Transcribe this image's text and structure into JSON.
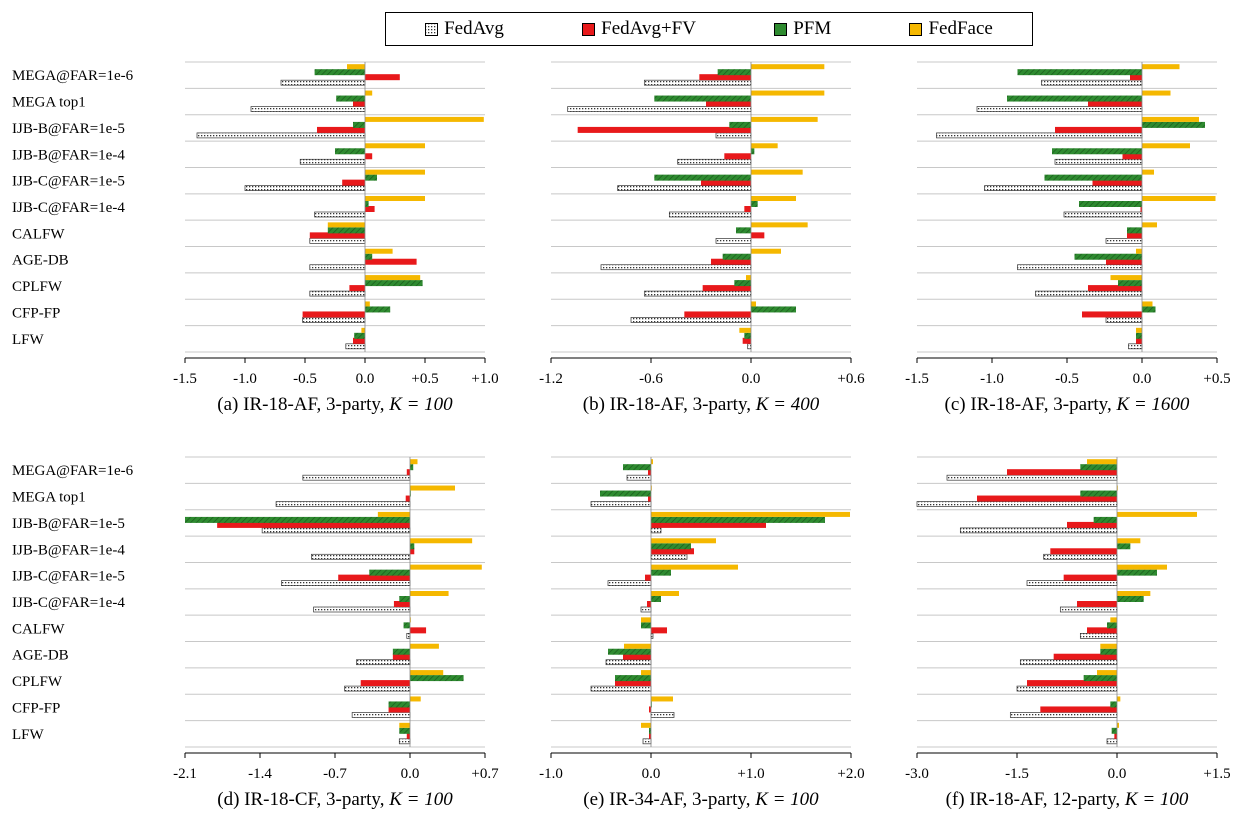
{
  "legend": {
    "entries": [
      {
        "name": "FedAvg",
        "color": "#ffffff",
        "pattern": "dotted"
      },
      {
        "name": "FedAvg+FV",
        "color": "#e8191b"
      },
      {
        "name": "PFM",
        "color": "#2e8b30",
        "pattern": "hatched"
      },
      {
        "name": "FedFace",
        "color": "#f5b800"
      }
    ]
  },
  "chart_data": [
    {
      "type": "bar",
      "orientation": "horizontal",
      "caption_prefix": "(a) IR-18-AF, 3-party, ",
      "caption_k": "K = 100",
      "categories": [
        "MEGA@FAR=1e-6",
        "MEGA top1",
        "IJB-B@FAR=1e-5",
        "IJB-B@FAR=1e-4",
        "IJB-C@FAR=1e-5",
        "IJB-C@FAR=1e-4",
        "CALFW",
        "AGE-DB",
        "CPLFW",
        "CFP-FP",
        "LFW"
      ],
      "xlim": [
        -1.5,
        1.0
      ],
      "xticks": [
        -1.5,
        -1.0,
        -0.5,
        0.0,
        0.5,
        1.0
      ],
      "xtick_labels": [
        "-1.5",
        "-1.0",
        "-0.5",
        "0.0",
        "+0.5",
        "+1.0"
      ],
      "series": [
        {
          "name": "FedAvg",
          "values": [
            -0.7,
            -0.95,
            -1.4,
            -0.54,
            -1.0,
            -0.42,
            -0.46,
            -0.46,
            -0.46,
            -0.52,
            -0.16
          ]
        },
        {
          "name": "FedAvg+FV",
          "values": [
            0.29,
            -0.1,
            -0.4,
            0.06,
            -0.19,
            0.08,
            -0.46,
            0.43,
            -0.13,
            -0.52,
            -0.1
          ]
        },
        {
          "name": "PFM",
          "values": [
            -0.42,
            -0.24,
            -0.1,
            -0.25,
            0.1,
            0.03,
            -0.31,
            0.06,
            0.48,
            0.21,
            -0.09
          ]
        },
        {
          "name": "FedFace",
          "values": [
            -0.15,
            0.06,
            0.99,
            0.5,
            0.5,
            0.5,
            -0.31,
            0.23,
            0.46,
            0.04,
            -0.03
          ]
        }
      ]
    },
    {
      "type": "bar",
      "orientation": "horizontal",
      "caption_prefix": "(b) IR-18-AF, 3-party, ",
      "caption_k": "K = 400",
      "categories": [
        "MEGA@FAR=1e-6",
        "MEGA top1",
        "IJB-B@FAR=1e-5",
        "IJB-B@FAR=1e-4",
        "IJB-C@FAR=1e-5",
        "IJB-C@FAR=1e-4",
        "CALFW",
        "AGE-DB",
        "CPLFW",
        "CFP-FP",
        "LFW"
      ],
      "xlim": [
        -1.2,
        0.6
      ],
      "xticks": [
        -1.2,
        -0.6,
        0.0,
        0.6
      ],
      "xtick_labels": [
        "-1.2",
        "-0.6",
        "0.0",
        "+0.6"
      ],
      "series": [
        {
          "name": "FedAvg",
          "values": [
            -0.64,
            -1.1,
            -0.21,
            -0.44,
            -0.8,
            -0.49,
            -0.21,
            -0.9,
            -0.64,
            -0.72,
            -0.02
          ]
        },
        {
          "name": "FedAvg+FV",
          "values": [
            -0.31,
            -0.27,
            -1.04,
            -0.16,
            -0.3,
            -0.04,
            0.08,
            -0.24,
            -0.29,
            -0.4,
            -0.05
          ]
        },
        {
          "name": "PFM",
          "values": [
            -0.2,
            -0.58,
            -0.13,
            0.02,
            -0.58,
            0.04,
            -0.09,
            -0.17,
            -0.1,
            0.27,
            -0.04
          ]
        },
        {
          "name": "FedFace",
          "values": [
            0.44,
            0.44,
            0.4,
            0.16,
            0.31,
            0.27,
            0.34,
            0.18,
            -0.03,
            0.03,
            -0.07
          ]
        }
      ]
    },
    {
      "type": "bar",
      "orientation": "horizontal",
      "caption_prefix": "(c) IR-18-AF, 3-party, ",
      "caption_k": "K = 1600",
      "categories": [
        "MEGA@FAR=1e-6",
        "MEGA top1",
        "IJB-B@FAR=1e-5",
        "IJB-B@FAR=1e-4",
        "IJB-C@FAR=1e-5",
        "IJB-C@FAR=1e-4",
        "CALFW",
        "AGE-DB",
        "CPLFW",
        "CFP-FP",
        "LFW"
      ],
      "xlim": [
        -1.5,
        0.5
      ],
      "xticks": [
        -1.5,
        -1.0,
        -0.5,
        0.0,
        0.5
      ],
      "xtick_labels": [
        "-1.5",
        "-1.0",
        "-0.5",
        "0.0",
        "+0.5"
      ],
      "series": [
        {
          "name": "FedAvg",
          "values": [
            -0.67,
            -1.1,
            -1.37,
            -0.58,
            -1.05,
            -0.52,
            -0.24,
            -0.83,
            -0.71,
            -0.24,
            -0.09
          ]
        },
        {
          "name": "FedAvg+FV",
          "values": [
            -0.08,
            -0.36,
            -0.58,
            -0.13,
            -0.33,
            -0.01,
            -0.1,
            -0.24,
            -0.36,
            -0.4,
            -0.04
          ]
        },
        {
          "name": "PFM",
          "values": [
            -0.83,
            -0.9,
            0.42,
            -0.6,
            -0.65,
            -0.42,
            -0.1,
            -0.45,
            -0.16,
            0.09,
            -0.04
          ]
        },
        {
          "name": "FedFace",
          "values": [
            0.25,
            0.19,
            0.38,
            0.32,
            0.08,
            0.49,
            0.1,
            -0.04,
            -0.21,
            0.07,
            -0.04
          ]
        }
      ]
    },
    {
      "type": "bar",
      "orientation": "horizontal",
      "caption_prefix": "(d) IR-18-CF, 3-party, ",
      "caption_k": "K = 100",
      "categories": [
        "MEGA@FAR=1e-6",
        "MEGA top1",
        "IJB-B@FAR=1e-5",
        "IJB-B@FAR=1e-4",
        "IJB-C@FAR=1e-5",
        "IJB-C@FAR=1e-4",
        "CALFW",
        "AGE-DB",
        "CPLFW",
        "CFP-FP",
        "LFW"
      ],
      "xlim": [
        -2.1,
        0.7
      ],
      "xticks": [
        -2.1,
        -1.4,
        -0.7,
        0.0,
        0.7
      ],
      "xtick_labels": [
        "-2.1",
        "-1.4",
        "-0.7",
        "0.0",
        "+0.7"
      ],
      "series": [
        {
          "name": "FedAvg",
          "values": [
            -1.0,
            -1.25,
            -1.38,
            -0.92,
            -1.2,
            -0.9,
            -0.03,
            -0.5,
            -0.61,
            -0.54,
            -0.1
          ]
        },
        {
          "name": "FedAvg+FV",
          "values": [
            -0.03,
            -0.04,
            -1.8,
            0.04,
            -0.67,
            -0.15,
            0.15,
            -0.16,
            -0.46,
            -0.2,
            -0.03
          ]
        },
        {
          "name": "PFM",
          "values": [
            0.03,
            0.0,
            -2.1,
            0.04,
            -0.38,
            -0.1,
            -0.06,
            -0.16,
            0.5,
            -0.2,
            -0.1
          ]
        },
        {
          "name": "FedFace",
          "values": [
            0.07,
            0.42,
            -0.3,
            0.58,
            0.67,
            0.36,
            0.0,
            0.27,
            0.31,
            0.1,
            -0.1
          ]
        }
      ]
    },
    {
      "type": "bar",
      "orientation": "horizontal",
      "caption_prefix": "(e) IR-34-AF, 3-party, ",
      "caption_k": "K = 100",
      "categories": [
        "MEGA@FAR=1e-6",
        "MEGA top1",
        "IJB-B@FAR=1e-5",
        "IJB-B@FAR=1e-4",
        "IJB-C@FAR=1e-5",
        "IJB-C@FAR=1e-4",
        "CALFW",
        "AGE-DB",
        "CPLFW",
        "CFP-FP",
        "LFW"
      ],
      "xlim": [
        -1.0,
        2.0
      ],
      "xticks": [
        -1.0,
        0.0,
        1.0,
        2.0
      ],
      "xtick_labels": [
        "-1.0",
        "0.0",
        "+1.0",
        "+2.0"
      ],
      "series": [
        {
          "name": "FedAvg",
          "values": [
            -0.24,
            -0.6,
            0.1,
            0.36,
            -0.43,
            -0.1,
            0.02,
            -0.45,
            -0.6,
            0.23,
            -0.08
          ]
        },
        {
          "name": "FedAvg+FV",
          "values": [
            -0.03,
            -0.03,
            1.15,
            0.43,
            -0.06,
            -0.04,
            0.16,
            -0.28,
            -0.36,
            -0.02,
            -0.02
          ]
        },
        {
          "name": "PFM",
          "values": [
            -0.28,
            -0.51,
            1.74,
            0.4,
            0.2,
            0.1,
            -0.1,
            -0.43,
            -0.36,
            0.0,
            -0.02
          ]
        },
        {
          "name": "FedFace",
          "values": [
            0.02,
            0.0,
            1.99,
            0.65,
            0.87,
            0.28,
            -0.1,
            -0.27,
            -0.1,
            0.22,
            -0.1
          ]
        }
      ]
    },
    {
      "type": "bar",
      "orientation": "horizontal",
      "caption_prefix": "(f) IR-18-AF, 12-party, ",
      "caption_k": "K = 100",
      "categories": [
        "MEGA@FAR=1e-6",
        "MEGA top1",
        "IJB-B@FAR=1e-5",
        "IJB-B@FAR=1e-4",
        "IJB-C@FAR=1e-5",
        "IJB-C@FAR=1e-4",
        "CALFW",
        "AGE-DB",
        "CPLFW",
        "CFP-FP",
        "LFW"
      ],
      "xlim": [
        -3.0,
        1.5
      ],
      "xticks": [
        -3.0,
        -1.5,
        0.0,
        1.5
      ],
      "xtick_labels": [
        "-3.0",
        "-1.5",
        "0.0",
        "+1.5"
      ],
      "series": [
        {
          "name": "FedAvg",
          "values": [
            -2.55,
            -3.0,
            -2.35,
            -1.1,
            -1.35,
            -0.85,
            -0.55,
            -1.45,
            -1.5,
            -1.6,
            -0.15
          ]
        },
        {
          "name": "FedAvg+FV",
          "values": [
            -1.65,
            -2.1,
            -0.75,
            -1.0,
            -0.8,
            -0.6,
            -0.45,
            -0.95,
            -1.35,
            -1.15,
            -0.04
          ]
        },
        {
          "name": "PFM",
          "values": [
            -0.55,
            -0.55,
            -0.35,
            0.2,
            0.6,
            0.4,
            -0.15,
            -0.25,
            -0.5,
            -0.1,
            -0.08
          ]
        },
        {
          "name": "FedFace",
          "values": [
            -0.45,
            0.0,
            1.2,
            0.35,
            0.75,
            0.5,
            -0.1,
            -0.25,
            -0.3,
            0.05,
            0.03
          ]
        }
      ]
    }
  ]
}
